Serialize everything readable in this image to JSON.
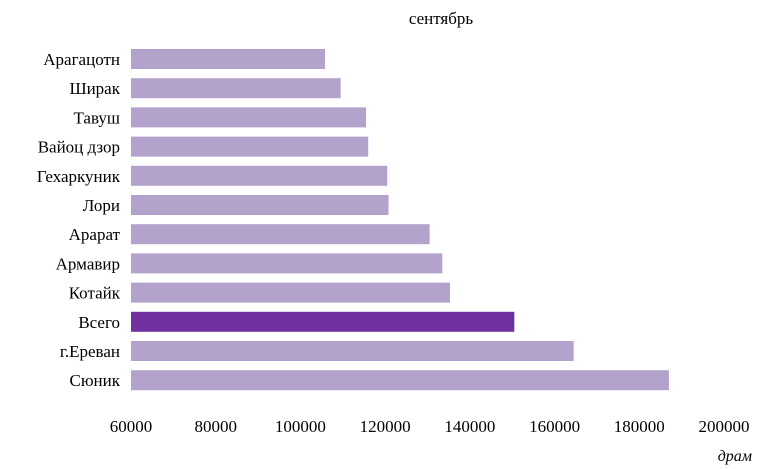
{
  "chart_data": {
    "type": "bar",
    "orientation": "horizontal",
    "title": "сентябрь",
    "unit_label": "драм",
    "xlim": [
      60000,
      200000
    ],
    "x_ticks": [
      60000,
      80000,
      100000,
      120000,
      140000,
      160000,
      180000,
      200000
    ],
    "grid": false,
    "categories": [
      "Арагацотн",
      "Ширак",
      "Тавуш",
      "Вайоц дзор",
      "Гехаркуник",
      "Лори",
      "Арарат",
      "Армавир",
      "Котайк",
      "Всего",
      "г.Ереван",
      "Сюник"
    ],
    "values": [
      105800,
      109500,
      115500,
      116000,
      120500,
      120800,
      130500,
      133500,
      135300,
      150500,
      164500,
      187000
    ],
    "highlight_category": "Всего",
    "colors": {
      "bar": "#b2a2cc",
      "highlight": "#7030a0"
    }
  }
}
